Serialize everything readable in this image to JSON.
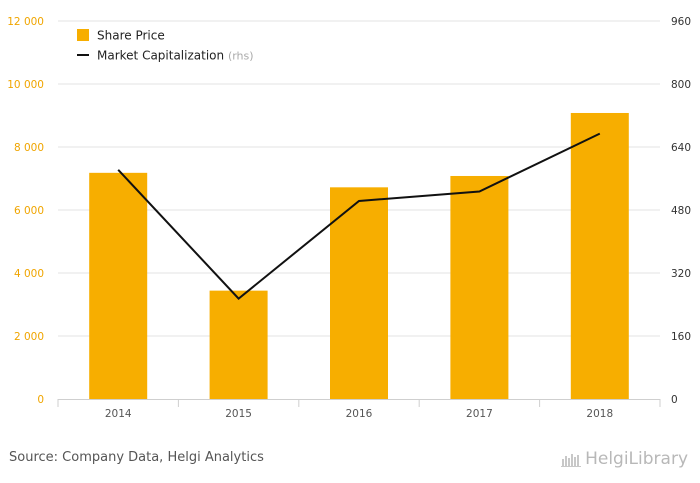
{
  "colors": {
    "bar": "#f7ae00",
    "line": "#111111",
    "left_axis_text": "#f0a500",
    "right_axis_text": "#333333",
    "category_text": "#555555",
    "grid": "#e3e3e3",
    "legend_suffix": "#aaaaaa"
  },
  "chart_data": {
    "type": "bar",
    "categories": [
      "2014",
      "2015",
      "2016",
      "2017",
      "2018"
    ],
    "series": [
      {
        "name": "Share Price",
        "type": "bar",
        "axis": "left",
        "values": [
          7180,
          3440,
          6720,
          7080,
          9080
        ]
      },
      {
        "name": "Market Capitalization",
        "name_suffix": "(rhs)",
        "type": "line",
        "axis": "right",
        "values": [
          582,
          255,
          503,
          527,
          674
        ]
      }
    ],
    "left_axis": {
      "ylim": [
        0,
        12000
      ],
      "ticks": [
        0,
        2000,
        4000,
        6000,
        8000,
        10000,
        12000
      ],
      "tick_labels": [
        "0",
        "2 000",
        "4 000",
        "6 000",
        "8 000",
        "10 000",
        "12 000"
      ]
    },
    "right_axis": {
      "ylim": [
        0,
        960
      ],
      "ticks": [
        0,
        160,
        320,
        480,
        640,
        800,
        960
      ],
      "tick_labels": [
        "0",
        "160",
        "320",
        "480",
        "640",
        "800",
        "960"
      ]
    },
    "grid": true,
    "legend_position": "top-left"
  },
  "footer": {
    "source": "Source: Company Data, Helgi Analytics",
    "brand": "HelgiLibrary"
  }
}
